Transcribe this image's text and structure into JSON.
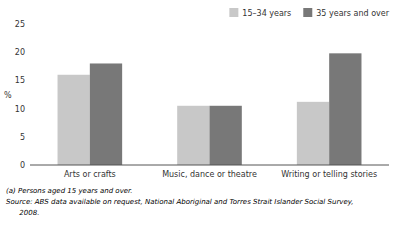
{
  "chart_data": {
    "type": "bar",
    "categories": [
      "Arts or crafts",
      "Music, dance or theatre",
      "Writing or telling stories"
    ],
    "series": [
      {
        "name": "15–34 years",
        "color": "#c8c8c8",
        "values": [
          16.0,
          10.5,
          11.2
        ]
      },
      {
        "name": "35 years and over",
        "color": "#787878",
        "values": [
          18.0,
          10.5,
          19.8
        ]
      }
    ],
    "y_label": "%",
    "ylim": [
      0,
      25
    ],
    "yticks": [
      0,
      5,
      10,
      15,
      20,
      25
    ],
    "grid": false,
    "legend": "upper right",
    "annotations": [
      "(a) Persons aged 15 years and over.",
      "Source: ABS data available on request, National Aboriginal and Torres Strait Islander Social Survey,",
      "      2008."
    ]
  }
}
